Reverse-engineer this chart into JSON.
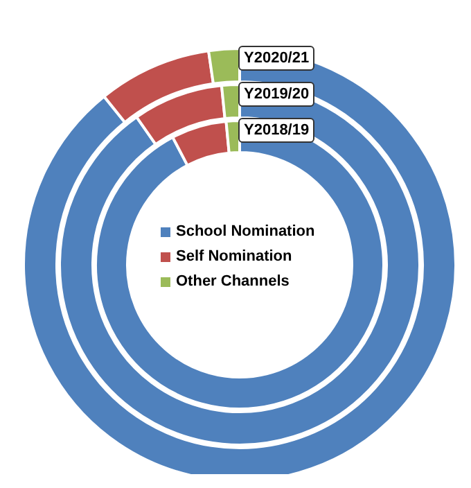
{
  "chart_data": {
    "type": "donut",
    "categories": [
      "School Nomination",
      "Self Nomination",
      "Other Channels"
    ],
    "colors": [
      "#4f81bd",
      "#c0504d",
      "#9bbb59"
    ],
    "series": [
      {
        "name": "Y2018/19",
        "values": [
          92.3,
          6.2,
          1.5
        ]
      },
      {
        "name": "Y2019/20",
        "values": [
          90.3,
          8.1,
          1.6
        ]
      },
      {
        "name": "Y2020/21",
        "values": [
          89.2,
          8.5,
          2.3
        ]
      }
    ],
    "legend": "center"
  }
}
